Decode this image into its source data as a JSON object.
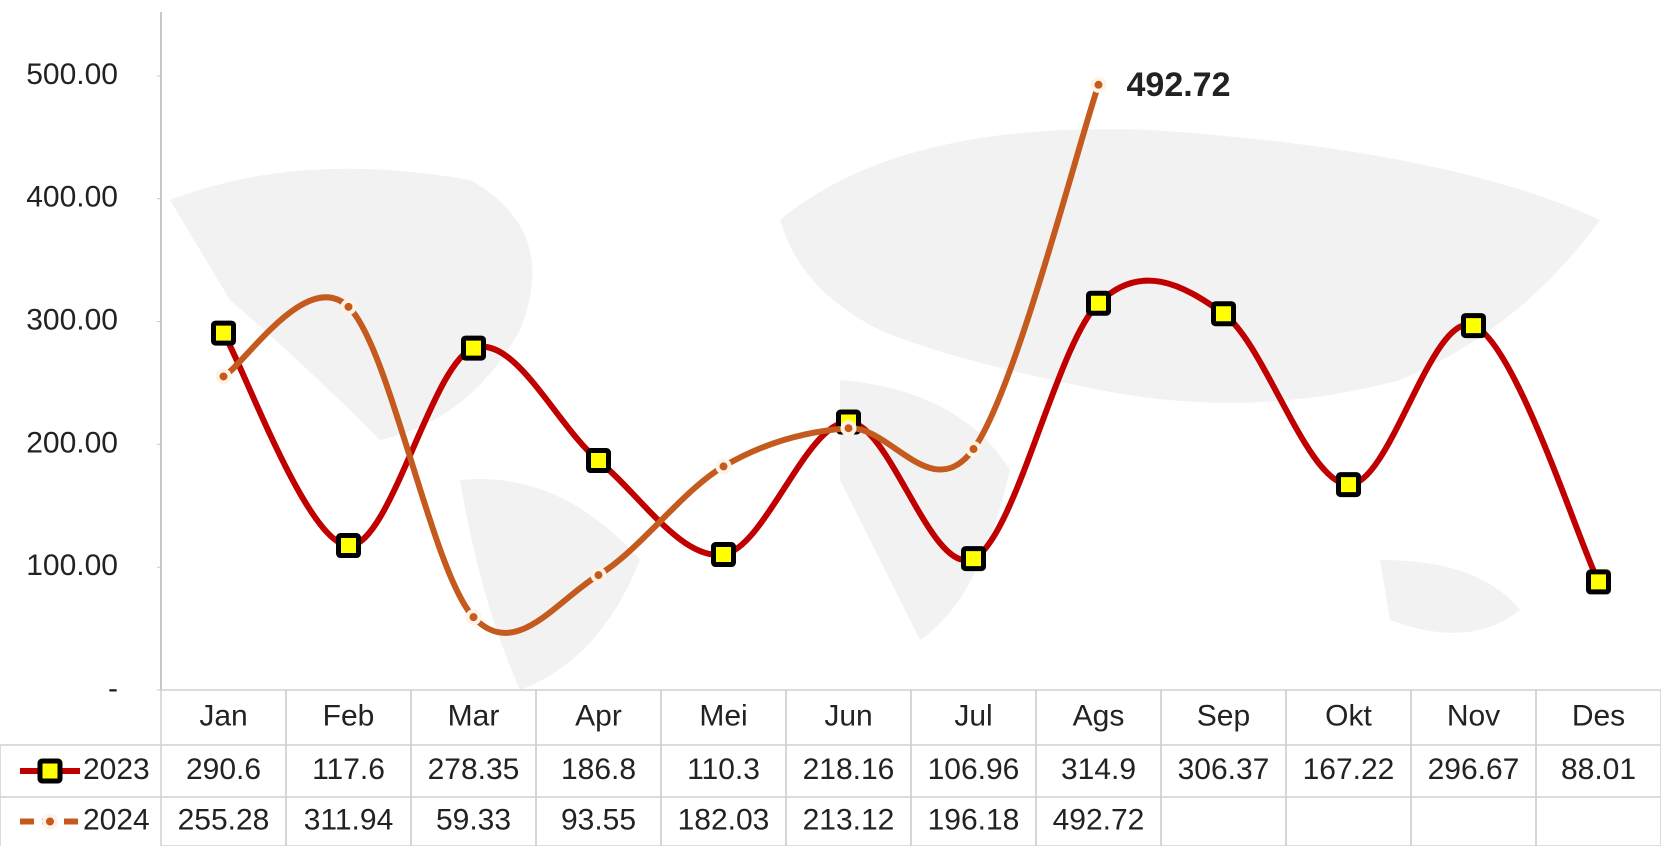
{
  "chart_data": {
    "type": "line",
    "categories": [
      "Jan",
      "Feb",
      "Mar",
      "Apr",
      "Mei",
      "Jun",
      "Jul",
      "Ags",
      "Sep",
      "Okt",
      "Nov",
      "Des"
    ],
    "series": [
      {
        "name": "2023",
        "color": "#c00000",
        "values": [
          290.6,
          117.6,
          278.35,
          186.8,
          110.3,
          218.16,
          106.96,
          314.9,
          306.37,
          167.22,
          296.67,
          88.01
        ]
      },
      {
        "name": "2024",
        "color": "#c55a1e",
        "values": [
          255.28,
          311.94,
          59.33,
          93.55,
          182.03,
          213.12,
          196.18,
          492.72,
          null,
          null,
          null,
          null
        ]
      }
    ],
    "annotation": "492.72",
    "ylim": [
      0,
      552
    ],
    "yticks": [
      {
        "value": 0,
        "label": "-"
      },
      {
        "value": 100,
        "label": "100.00"
      },
      {
        "value": 200,
        "label": "200.00"
      },
      {
        "value": 300,
        "label": "300.00"
      },
      {
        "value": 400,
        "label": "400.00"
      },
      {
        "value": 500,
        "label": "500.00"
      }
    ],
    "smooth": true
  }
}
